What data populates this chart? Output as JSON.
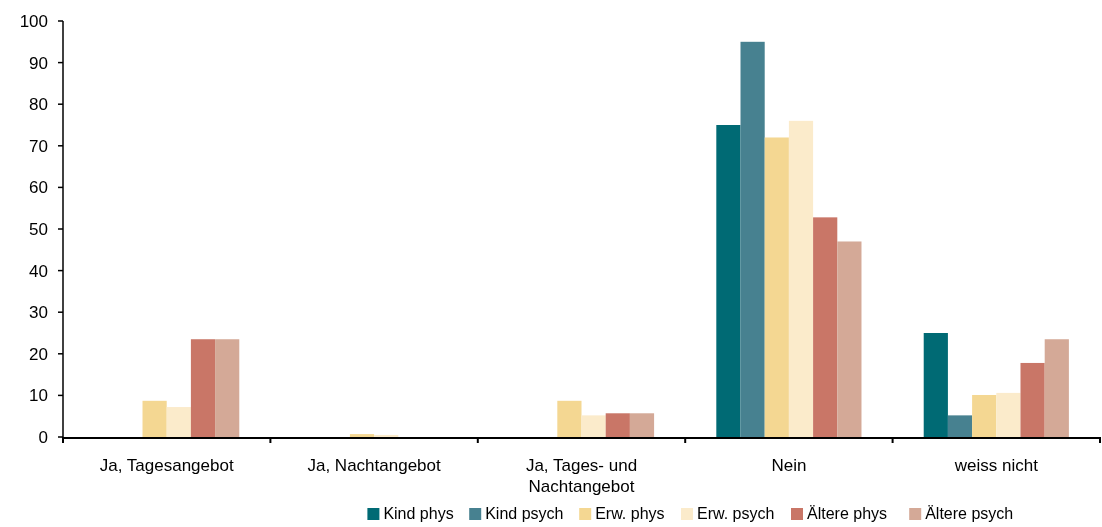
{
  "chart_data": {
    "type": "bar",
    "categories": [
      "Ja, Tagesangebot",
      "Ja, Nachtangebot",
      "Ja, Tages- und Nachtangebot",
      "Nein",
      "weiss nicht"
    ],
    "series": [
      {
        "name": "Kind phys",
        "color": "#006a74",
        "values": [
          0,
          0,
          0,
          75,
          25
        ]
      },
      {
        "name": "Kind psych",
        "color": "#478190",
        "values": [
          0,
          0,
          0,
          95,
          5.2
        ]
      },
      {
        "name": "Erw. phys",
        "color": "#f4d792",
        "values": [
          8.7,
          0.7,
          8.7,
          72,
          10.1
        ]
      },
      {
        "name": "Erw. psych",
        "color": "#fbebcb",
        "values": [
          7.2,
          0.5,
          5.2,
          76,
          10.6
        ]
      },
      {
        "name": "Ältere phys",
        "color": "#c97667",
        "values": [
          23.5,
          0,
          5.7,
          52.8,
          17.8
        ]
      },
      {
        "name": "Ältere psych",
        "color": "#d4a997",
        "values": [
          23.5,
          0,
          5.7,
          47,
          23.5
        ]
      }
    ],
    "ylim": [
      0,
      100
    ],
    "yticks": [
      0,
      10,
      20,
      30,
      40,
      50,
      60,
      70,
      80,
      90,
      100
    ],
    "grid": false,
    "legend": "bottom"
  }
}
